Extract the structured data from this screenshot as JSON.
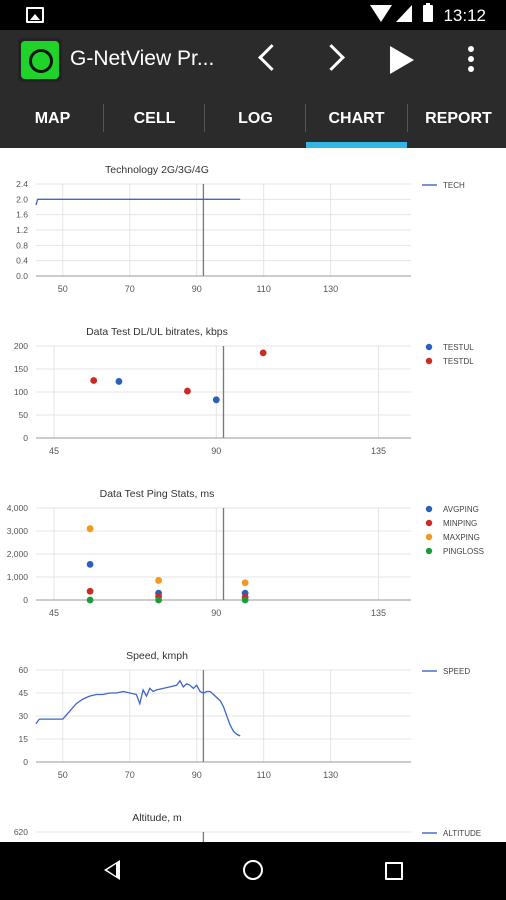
{
  "status_bar": {
    "time": "13:12",
    "icons": [
      "image-icon",
      "wifi-icon",
      "signal-icon",
      "battery-icon"
    ]
  },
  "app_bar": {
    "title": "G-NetView Pr...",
    "icons": [
      "back-chevron-icon",
      "forward-chevron-icon",
      "play-icon",
      "more-vert-icon"
    ]
  },
  "tabs": [
    {
      "label": "MAP"
    },
    {
      "label": "CELL"
    },
    {
      "label": "LOG"
    },
    {
      "label": "CHART",
      "active": true
    },
    {
      "label": "REPORT"
    }
  ],
  "colors": {
    "accent": "#33b5e5",
    "line": "#3f67c8",
    "blue": "#2b5fbd",
    "red": "#cc2a23",
    "orange": "#f5961e",
    "green": "#1e9a3a"
  },
  "chart_data": [
    {
      "type": "line",
      "title": "Technology 2G/3G/4G",
      "xticks": [
        50,
        70,
        90,
        110,
        130
      ],
      "xlim": [
        42,
        154
      ],
      "yticks": [
        "0.0",
        "0.4",
        "0.8",
        "1.2",
        "1.6",
        "2.0",
        "2.4"
      ],
      "ylim": [
        0,
        2.4
      ],
      "cursor_x": 92,
      "legend": [
        "TECH"
      ],
      "series": [
        {
          "name": "TECH",
          "color": "#3f67c8",
          "x": [
            42,
            42.5,
            43,
            103
          ],
          "y": [
            1.85,
            2.0,
            2.0,
            2.0
          ]
        }
      ]
    },
    {
      "type": "scatter",
      "title": "Data Test DL/UL bitrates, kbps",
      "xticks": [
        45,
        90,
        135
      ],
      "xlim": [
        40,
        144
      ],
      "yticks": [
        "0",
        "50",
        "100",
        "150",
        "200"
      ],
      "ylim": [
        0,
        200
      ],
      "cursor_x": 92,
      "legend": [
        "TESTUL",
        "TESTDL"
      ],
      "series": [
        {
          "name": "TESTUL",
          "color": "#2b5fbd",
          "x": [
            63,
            90
          ],
          "y": [
            123,
            83
          ]
        },
        {
          "name": "TESTDL",
          "color": "#cc2a23",
          "x": [
            56,
            82,
            103
          ],
          "y": [
            125,
            102,
            185
          ]
        }
      ]
    },
    {
      "type": "scatter",
      "title": "Data Test Ping Stats, ms",
      "xticks": [
        45,
        90,
        135
      ],
      "xlim": [
        40,
        144
      ],
      "yticks": [
        "0",
        "1,000",
        "2,000",
        "3,000",
        "4,000"
      ],
      "ylim": [
        0,
        4000
      ],
      "cursor_x": 92,
      "legend": [
        "AVGPING",
        "MINPING",
        "MAXPING",
        "PINGLOSS"
      ],
      "series": [
        {
          "name": "AVGPING",
          "color": "#2b5fbd",
          "x": [
            55,
            74,
            98
          ],
          "y": [
            1550,
            300,
            300
          ]
        },
        {
          "name": "MINPING",
          "color": "#cc2a23",
          "x": [
            55,
            74,
            98
          ],
          "y": [
            380,
            150,
            120
          ]
        },
        {
          "name": "MAXPING",
          "color": "#f5961e",
          "x": [
            55,
            74,
            98
          ],
          "y": [
            3100,
            850,
            750
          ]
        },
        {
          "name": "PINGLOSS",
          "color": "#1e9a3a",
          "x": [
            55,
            74,
            98
          ],
          "y": [
            0,
            0,
            0
          ]
        }
      ]
    },
    {
      "type": "line",
      "title": "Speed, kmph",
      "xticks": [
        50,
        70,
        90,
        110,
        130
      ],
      "xlim": [
        42,
        154
      ],
      "yticks": [
        "0",
        "15",
        "30",
        "45",
        "60"
      ],
      "ylim": [
        0,
        60
      ],
      "cursor_x": 92,
      "legend": [
        "SPEED"
      ],
      "series": [
        {
          "name": "SPEED",
          "color": "#3f67c8",
          "x": [
            42,
            43,
            45,
            48,
            50,
            52,
            54,
            56,
            58,
            60,
            62,
            64,
            66,
            68,
            70,
            72,
            73,
            74,
            75,
            76,
            77,
            78,
            80,
            82,
            84,
            85,
            86,
            87,
            88,
            89,
            90,
            91,
            92,
            93,
            94,
            95,
            96,
            97,
            98,
            99,
            100,
            101,
            102,
            103
          ],
          "y": [
            25,
            28,
            28,
            28,
            28,
            33,
            38,
            41,
            43,
            44,
            44,
            45,
            45,
            46,
            45,
            44,
            38,
            47,
            43,
            48,
            46,
            47,
            48,
            49,
            50,
            53,
            49,
            51,
            50,
            48,
            50,
            46,
            45,
            46,
            46,
            44,
            42,
            40,
            36,
            30,
            24,
            20,
            18,
            17
          ]
        }
      ]
    },
    {
      "type": "line",
      "title": "Altitude, m",
      "xticks": [],
      "xlim": [
        42,
        154
      ],
      "yticks": [
        "620"
      ],
      "ylim": [
        0,
        620
      ],
      "cursor_x": 92,
      "legend": [
        "ALTITUDE"
      ],
      "series": [
        {
          "name": "ALTITUDE",
          "color": "#3f67c8",
          "x": [],
          "y": []
        }
      ]
    }
  ]
}
